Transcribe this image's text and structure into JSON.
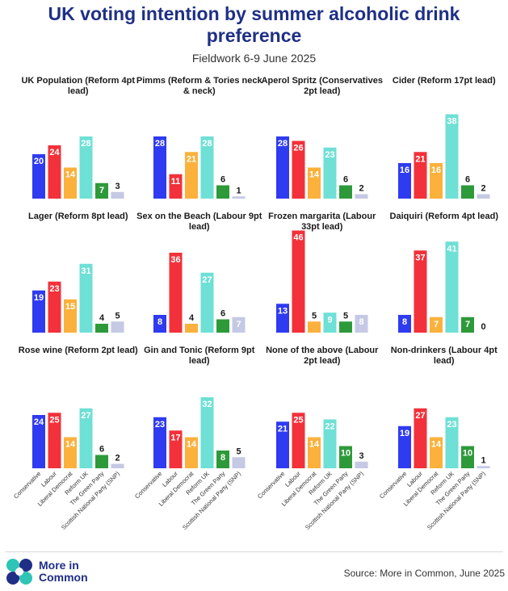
{
  "header": {
    "title": "UK voting intention by summer alcoholic drink preference",
    "subtitle": "Fieldwork 6-9 June 2025"
  },
  "footer": {
    "brand_line1": "More in",
    "brand_line2": "Common",
    "source": "Source: More in Common, June 2025"
  },
  "colors": {
    "Conservative": "#2f3bf0",
    "Labour": "#f2313a",
    "Liberal Democrat": "#fbb13c",
    "Reform UK": "#6ee0d6",
    "The Green Party": "#2d9a3a",
    "Scottish National Party (SNP)": "#c5c9e3"
  },
  "chart_data": {
    "type": "bar",
    "categories": [
      "Conservative",
      "Labour",
      "Liberal Democrat",
      "Reform UK",
      "The Green Party",
      "Scottish National Party (SNP)"
    ],
    "panels": [
      {
        "title": "UK Population (Reform 4pt lead)",
        "values": [
          20,
          24,
          14,
          28,
          7,
          3
        ]
      },
      {
        "title": "Pimms (Reform & Tories neck & neck)",
        "values": [
          28,
          11,
          21,
          28,
          6,
          1
        ]
      },
      {
        "title": "Aperol Spritz (Conservatives 2pt lead)",
        "values": [
          28,
          26,
          14,
          23,
          6,
          2
        ]
      },
      {
        "title": "Cider (Reform 17pt lead)",
        "values": [
          16,
          21,
          16,
          38,
          6,
          2
        ]
      },
      {
        "title": "Lager (Reform 8pt lead)",
        "values": [
          19,
          23,
          15,
          31,
          4,
          5
        ]
      },
      {
        "title": "Sex on the Beach (Labour 9pt lead)",
        "values": [
          8,
          36,
          4,
          27,
          6,
          7
        ]
      },
      {
        "title": "Frozen margarita (Labour 33pt lead)",
        "values": [
          13,
          46,
          5,
          9,
          5,
          8
        ]
      },
      {
        "title": "Daiquiri (Reform 4pt lead)",
        "values": [
          8,
          37,
          7,
          41,
          7,
          0
        ]
      },
      {
        "title": "Rose wine (Reform 2pt lead)",
        "values": [
          24,
          25,
          14,
          27,
          6,
          2
        ]
      },
      {
        "title": "Gin and Tonic (Reform 9pt lead)",
        "values": [
          23,
          17,
          14,
          32,
          8,
          5
        ]
      },
      {
        "title": "None of the above (Labour 2pt lead)",
        "values": [
          21,
          25,
          14,
          22,
          10,
          3
        ]
      },
      {
        "title": "Non-drinkers (Labour 4pt lead)",
        "values": [
          19,
          27,
          14,
          23,
          10,
          1
        ]
      }
    ],
    "ylim": [
      0,
      50
    ],
    "grid": false,
    "legend": "none"
  }
}
